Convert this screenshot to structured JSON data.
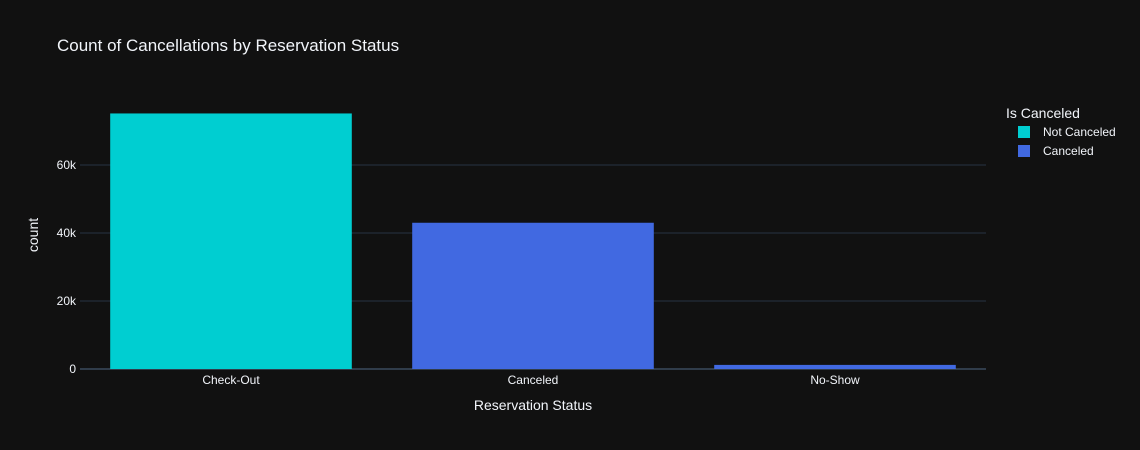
{
  "chart_data": {
    "type": "bar",
    "title": "Count of Cancellations by Reservation Status",
    "xlabel": "Reservation Status",
    "ylabel": "count",
    "categories": [
      "Check-Out",
      "Canceled",
      "No-Show"
    ],
    "series": [
      {
        "name": "Not Canceled",
        "color": "#00ced1",
        "values": [
          75166,
          0,
          0
        ]
      },
      {
        "name": "Canceled",
        "color": "#4169e1",
        "values": [
          0,
          43017,
          1207
        ]
      }
    ],
    "ylim": [
      0,
      79123
    ],
    "yticks": [
      0,
      20000,
      40000,
      60000
    ],
    "ytick_labels": [
      "0",
      "20k",
      "40k",
      "60k"
    ],
    "grid": true,
    "legend": {
      "title": "Is Canceled",
      "position": "top-right"
    }
  }
}
